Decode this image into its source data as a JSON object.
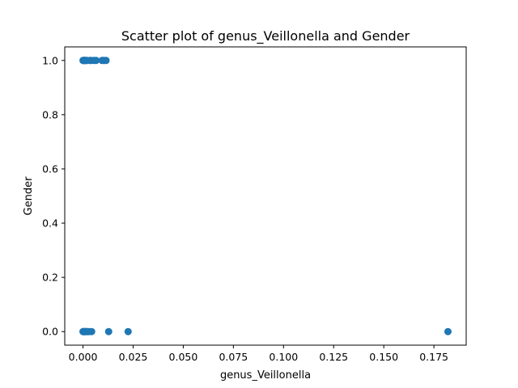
{
  "chart_data": {
    "type": "scatter",
    "title": "Scatter plot of genus_Veillonella and Gender",
    "xlabel": "genus_Veillonella",
    "ylabel": "Gender",
    "xlim": [
      -0.0091,
      0.1911
    ],
    "ylim": [
      -0.05,
      1.05
    ],
    "grid": false,
    "xticks": [
      0.0,
      0.025,
      0.05,
      0.075,
      0.1,
      0.125,
      0.15,
      0.175
    ],
    "xtick_labels": [
      "0.000",
      "0.025",
      "0.050",
      "0.075",
      "0.100",
      "0.125",
      "0.150",
      "0.175"
    ],
    "yticks": [
      0.0,
      0.2,
      0.4,
      0.6,
      0.8,
      1.0
    ],
    "ytick_labels": [
      "0.0",
      "0.2",
      "0.4",
      "0.6",
      "0.8",
      "1.0"
    ],
    "color": "#1f77b4",
    "points": [
      {
        "x": 0.0,
        "y": 1
      },
      {
        "x": 0.0002,
        "y": 1
      },
      {
        "x": 0.0004,
        "y": 1
      },
      {
        "x": 0.0006,
        "y": 1
      },
      {
        "x": 0.0008,
        "y": 1
      },
      {
        "x": 0.001,
        "y": 1
      },
      {
        "x": 0.0013,
        "y": 1
      },
      {
        "x": 0.0016,
        "y": 1
      },
      {
        "x": 0.002,
        "y": 1
      },
      {
        "x": 0.0035,
        "y": 1
      },
      {
        "x": 0.004,
        "y": 1
      },
      {
        "x": 0.0055,
        "y": 1
      },
      {
        "x": 0.0065,
        "y": 1
      },
      {
        "x": 0.0095,
        "y": 1
      },
      {
        "x": 0.0105,
        "y": 1
      },
      {
        "x": 0.0115,
        "y": 1
      },
      {
        "x": 0.0,
        "y": 0
      },
      {
        "x": 0.0002,
        "y": 0
      },
      {
        "x": 0.0004,
        "y": 0
      },
      {
        "x": 0.0006,
        "y": 0
      },
      {
        "x": 0.0008,
        "y": 0
      },
      {
        "x": 0.001,
        "y": 0
      },
      {
        "x": 0.0013,
        "y": 0
      },
      {
        "x": 0.0016,
        "y": 0
      },
      {
        "x": 0.002,
        "y": 0
      },
      {
        "x": 0.0025,
        "y": 0
      },
      {
        "x": 0.003,
        "y": 0
      },
      {
        "x": 0.0043,
        "y": 0
      },
      {
        "x": 0.0128,
        "y": 0
      },
      {
        "x": 0.0225,
        "y": 0
      },
      {
        "x": 0.182,
        "y": 0
      }
    ]
  }
}
